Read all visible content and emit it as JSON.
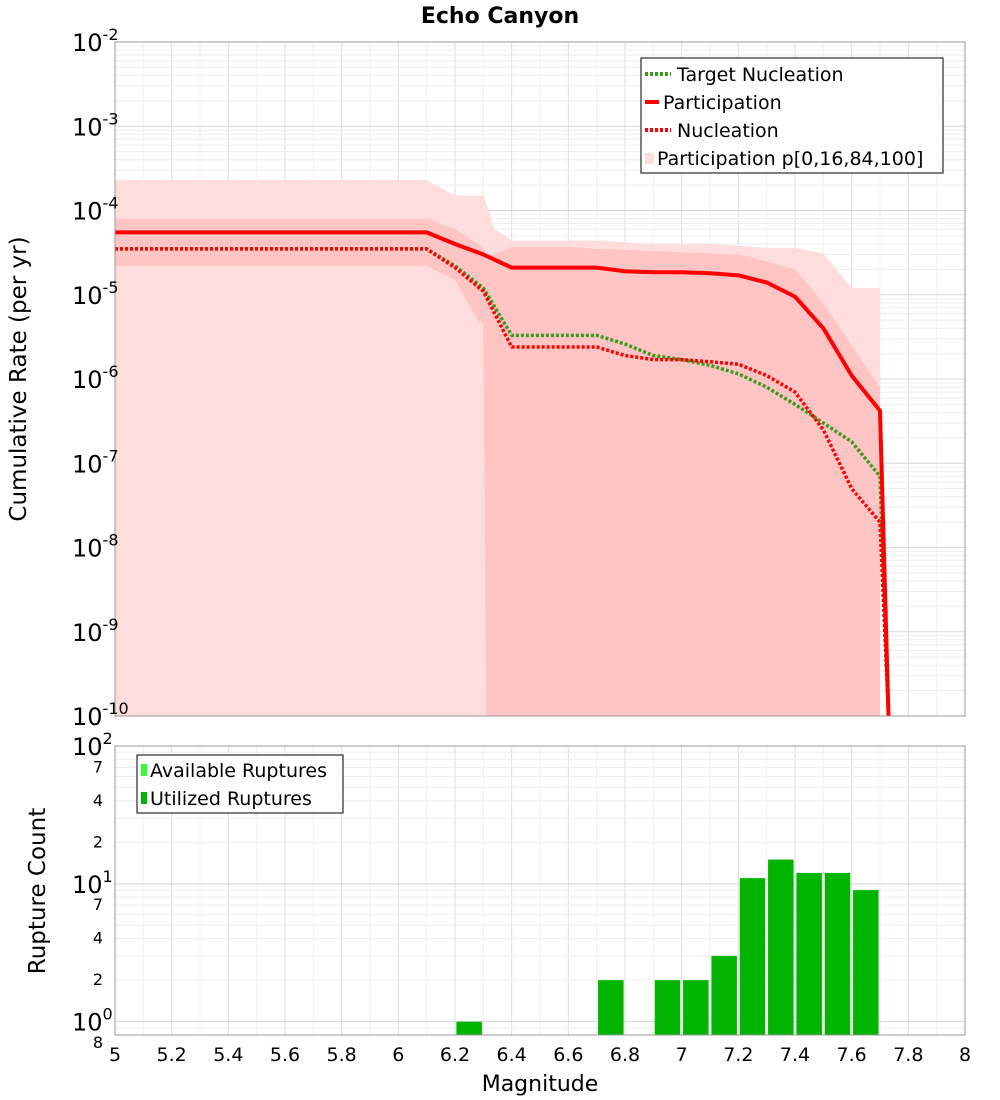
{
  "title": "Echo Canyon",
  "chart_data": [
    {
      "type": "line",
      "ylabel": "Cumulative Rate (per yr)",
      "xlabel": "",
      "xlim": [
        5,
        8
      ],
      "ylim": [
        1e-10,
        0.01
      ],
      "yscale": "log",
      "grid": true,
      "legend_position": "top-right",
      "y_tick_labels": [
        {
          "base": "10",
          "exp": "-10",
          "value": 1e-10
        },
        {
          "base": "10",
          "exp": "-9",
          "value": 1e-09
        },
        {
          "base": "10",
          "exp": "-8",
          "value": 1e-08
        },
        {
          "base": "10",
          "exp": "-7",
          "value": 1e-07
        },
        {
          "base": "10",
          "exp": "-6",
          "value": 1e-06
        },
        {
          "base": "10",
          "exp": "-5",
          "value": 1e-05
        },
        {
          "base": "10",
          "exp": "-4",
          "value": 0.0001
        },
        {
          "base": "10",
          "exp": "-3",
          "value": 0.001
        },
        {
          "base": "10",
          "exp": "-2",
          "value": 0.01
        }
      ],
      "bands": [
        {
          "name": "Participation p[0,16,84,100]",
          "color": "#ffdddd",
          "x": [
            5.0,
            6.1,
            6.2,
            6.3,
            6.32,
            6.34,
            6.4,
            6.5,
            6.6,
            6.7,
            6.8,
            6.9,
            7.0,
            7.1,
            7.2,
            7.3,
            7.4,
            7.5,
            7.6,
            7.7
          ],
          "upper": [
            0.00023,
            0.00023,
            0.00015,
            0.00015,
            0.0001,
            6e-05,
            4.4e-05,
            4.4e-05,
            4.4e-05,
            4.4e-05,
            4.2e-05,
            4e-05,
            4e-05,
            4e-05,
            3.8e-05,
            3.6e-05,
            3.6e-05,
            3.1e-05,
            1.2e-05,
            1.2e-05
          ],
          "lower": [
            1e-10,
            1e-10,
            1e-10,
            1e-10,
            1e-10,
            1e-10,
            1e-10,
            1e-10,
            1e-10,
            1e-10,
            1e-10,
            1e-10,
            1e-10,
            1e-10,
            1e-10,
            1e-10,
            1e-10,
            1e-10,
            1e-10,
            1e-10
          ]
        },
        {
          "name": "",
          "color": "#ffc4c4",
          "x": [
            5.0,
            6.1,
            6.2,
            6.28,
            6.3,
            6.31,
            6.34,
            6.4,
            6.5,
            6.6,
            6.7,
            6.8,
            6.9,
            7.0,
            7.1,
            7.2,
            7.3,
            7.4,
            7.5,
            7.6,
            7.7
          ],
          "upper": [
            8e-05,
            8e-05,
            6e-05,
            4e-05,
            3.5e-05,
            3e-05,
            3e-05,
            3.7e-05,
            3.7e-05,
            3.7e-05,
            3.5e-05,
            3.4e-05,
            3.3e-05,
            3.2e-05,
            3.1e-05,
            3e-05,
            2.5e-05,
            2e-05,
            8e-06,
            2.5e-06,
            8e-07
          ],
          "lower": [
            2.2e-05,
            2.2e-05,
            1.5e-05,
            5e-06,
            4.5e-06,
            1e-10,
            1e-10,
            1e-10,
            1e-10,
            1e-10,
            1e-10,
            1e-10,
            1e-10,
            1e-10,
            1e-10,
            1e-10,
            1e-10,
            1e-10,
            1e-10,
            1e-10,
            1e-10
          ]
        }
      ],
      "series": [
        {
          "name": "Target Nucleation",
          "color": "#3a9a1a",
          "dash": "dotted",
          "x": [
            5.0,
            6.1,
            6.2,
            6.3,
            6.4,
            6.5,
            6.6,
            6.7,
            6.8,
            6.9,
            7.0,
            7.1,
            7.2,
            7.3,
            7.4,
            7.5,
            7.6,
            7.7,
            7.73
          ],
          "y": [
            3.5e-05,
            3.5e-05,
            2.2e-05,
            1.2e-05,
            3.3e-06,
            3.3e-06,
            3.3e-06,
            3.3e-06,
            2.6e-06,
            1.9e-06,
            1.7e-06,
            1.45e-06,
            1.15e-06,
            8e-07,
            5e-07,
            3e-07,
            1.8e-07,
            7e-08,
            1e-10
          ]
        },
        {
          "name": "Participation",
          "color": "#ff0000",
          "dash": "solid",
          "x": [
            5.0,
            6.1,
            6.2,
            6.3,
            6.4,
            6.5,
            6.6,
            6.7,
            6.8,
            6.9,
            7.0,
            7.1,
            7.2,
            7.3,
            7.4,
            7.5,
            7.6,
            7.7,
            7.73
          ],
          "y": [
            5.5e-05,
            5.5e-05,
            4e-05,
            3e-05,
            2.1e-05,
            2.1e-05,
            2.1e-05,
            2.1e-05,
            1.9e-05,
            1.85e-05,
            1.85e-05,
            1.8e-05,
            1.7e-05,
            1.4e-05,
            9.5e-06,
            4e-06,
            1.1e-06,
            4.2e-07,
            1e-10
          ]
        },
        {
          "name": "Nucleation",
          "color": "#ff0000",
          "dash": "dotted",
          "x": [
            5.0,
            6.1,
            6.2,
            6.3,
            6.4,
            6.5,
            6.6,
            6.7,
            6.8,
            6.9,
            7.0,
            7.1,
            7.2,
            7.3,
            7.4,
            7.5,
            7.6,
            7.7,
            7.73
          ],
          "y": [
            3.5e-05,
            3.5e-05,
            2.1e-05,
            1.1e-05,
            2.4e-06,
            2.4e-06,
            2.4e-06,
            2.4e-06,
            1.9e-06,
            1.7e-06,
            1.7e-06,
            1.6e-06,
            1.5e-06,
            1.1e-06,
            7e-07,
            2.5e-07,
            5e-08,
            2e-08,
            1e-10
          ]
        }
      ],
      "legend": [
        {
          "label": "Target Nucleation",
          "kind": "line",
          "color": "#3a9a1a",
          "dash": "dotted"
        },
        {
          "label": "Participation",
          "kind": "line",
          "color": "#ff0000",
          "dash": "solid"
        },
        {
          "label": "Nucleation",
          "kind": "line",
          "color": "#ff0000",
          "dash": "dotted"
        },
        {
          "label": "Participation p[0,16,84,100]",
          "kind": "patch",
          "color": "#ffdddd"
        }
      ]
    },
    {
      "type": "bar",
      "ylabel": "Rupture Count",
      "xlabel": "Magnitude",
      "xlim": [
        5,
        8
      ],
      "ylim": [
        0.8,
        100
      ],
      "yscale": "log",
      "grid": true,
      "legend_position": "top-left",
      "x_ticks": [
        "5",
        "5.2",
        "5.4",
        "5.6",
        "5.8",
        "6",
        "6.2",
        "6.4",
        "6.6",
        "6.8",
        "7",
        "7.2",
        "7.4",
        "7.6",
        "7.8",
        "8"
      ],
      "y_major_labels": [
        {
          "base": "10",
          "exp": "0",
          "value": 1
        },
        {
          "base": "10",
          "exp": "1",
          "value": 10
        },
        {
          "base": "10",
          "exp": "2",
          "value": 100
        }
      ],
      "y_minor_labels": [
        {
          "label": "8",
          "value": 0.8
        },
        {
          "label": "2",
          "value": 2
        },
        {
          "label": "4",
          "value": 4
        },
        {
          "label": "7",
          "value": 7
        },
        {
          "label": "2",
          "value": 20
        },
        {
          "label": "4",
          "value": 40
        },
        {
          "label": "7",
          "value": 70
        }
      ],
      "bar_width": 0.09,
      "categories": [
        6.25,
        6.75,
        6.95,
        7.05,
        7.15,
        7.25,
        7.35,
        7.45,
        7.55,
        7.65
      ],
      "series": [
        {
          "name": "Utilized Ruptures",
          "color": "#00b400",
          "values": [
            1,
            2,
            2,
            2,
            3,
            11,
            15,
            12,
            12,
            9
          ]
        }
      ],
      "legend": [
        {
          "label": "Available Ruptures",
          "color": "#33ff33"
        },
        {
          "label": "Utilized Ruptures",
          "color": "#00b400"
        }
      ]
    }
  ]
}
